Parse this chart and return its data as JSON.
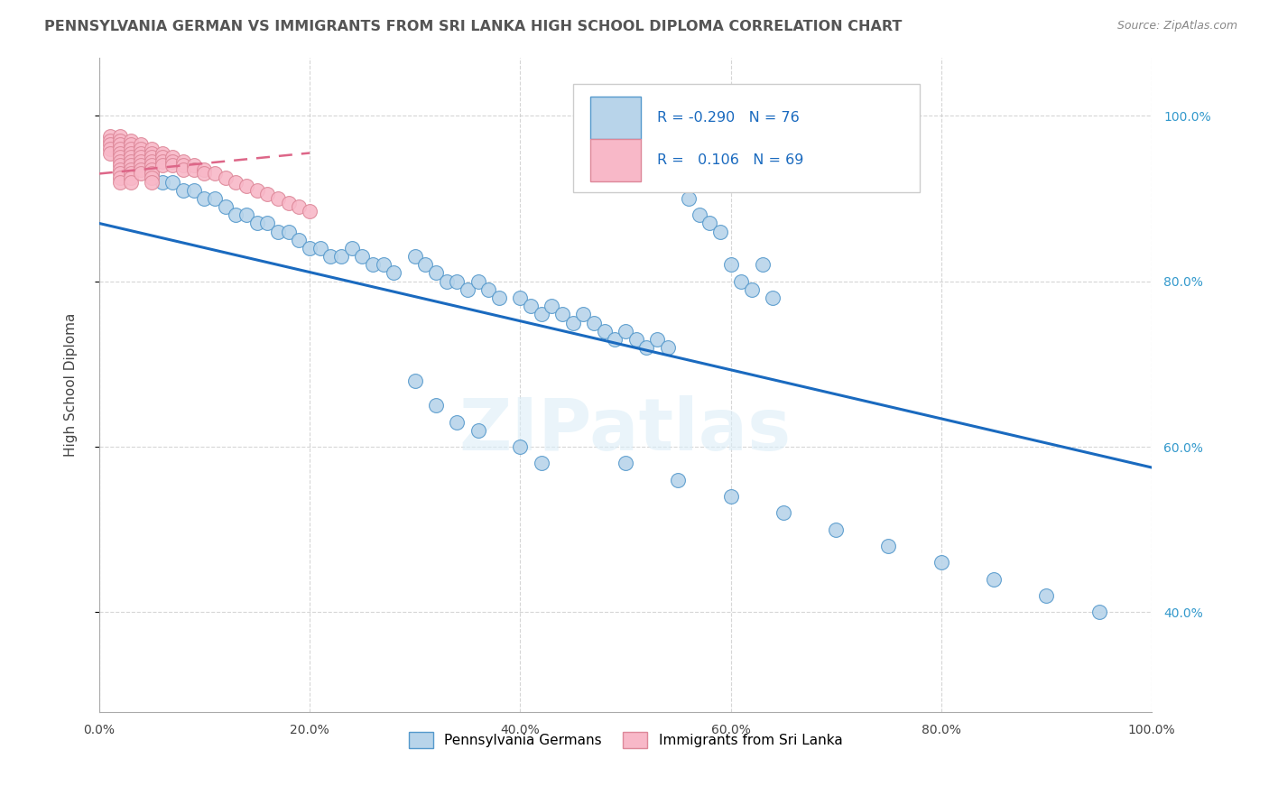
{
  "title": "PENNSYLVANIA GERMAN VS IMMIGRANTS FROM SRI LANKA HIGH SCHOOL DIPLOMA CORRELATION CHART",
  "source": "Source: ZipAtlas.com",
  "ylabel": "High School Diploma",
  "watermark": "ZIPatlas",
  "legend_blue_r": "-0.290",
  "legend_blue_n": "76",
  "legend_pink_r": "0.106",
  "legend_pink_n": "69",
  "legend_label_blue": "Pennsylvania Germans",
  "legend_label_pink": "Immigrants from Sri Lanka",
  "x_ticks": [
    0.0,
    0.2,
    0.4,
    0.6,
    0.8,
    1.0
  ],
  "y_ticks": [
    0.4,
    0.6,
    0.8,
    1.0
  ],
  "xlim": [
    0.0,
    1.0
  ],
  "ylim": [
    0.28,
    1.07
  ],
  "blue_fill": "#b8d4ea",
  "blue_edge": "#5599cc",
  "pink_fill": "#f8b8c8",
  "pink_edge": "#dd8899",
  "trendline_blue": "#1a6abf",
  "trendline_pink": "#dd6688",
  "background": "#ffffff",
  "grid_color": "#cccccc",
  "blue_x": [
    0.03,
    0.04,
    0.05,
    0.06,
    0.07,
    0.08,
    0.09,
    0.1,
    0.11,
    0.12,
    0.13,
    0.14,
    0.15,
    0.16,
    0.17,
    0.18,
    0.19,
    0.2,
    0.21,
    0.22,
    0.23,
    0.24,
    0.25,
    0.26,
    0.27,
    0.28,
    0.3,
    0.31,
    0.32,
    0.33,
    0.34,
    0.35,
    0.36,
    0.37,
    0.38,
    0.4,
    0.41,
    0.42,
    0.43,
    0.44,
    0.45,
    0.46,
    0.47,
    0.48,
    0.49,
    0.5,
    0.51,
    0.52,
    0.53,
    0.54,
    0.55,
    0.56,
    0.57,
    0.58,
    0.59,
    0.6,
    0.61,
    0.62,
    0.63,
    0.64,
    0.3,
    0.32,
    0.34,
    0.36,
    0.4,
    0.42,
    0.5,
    0.55,
    0.6,
    0.65,
    0.7,
    0.75,
    0.8,
    0.85,
    0.9,
    0.95
  ],
  "blue_y": [
    0.95,
    0.94,
    0.93,
    0.92,
    0.92,
    0.91,
    0.91,
    0.9,
    0.9,
    0.89,
    0.88,
    0.88,
    0.87,
    0.87,
    0.86,
    0.86,
    0.85,
    0.84,
    0.84,
    0.83,
    0.83,
    0.84,
    0.83,
    0.82,
    0.82,
    0.81,
    0.83,
    0.82,
    0.81,
    0.8,
    0.8,
    0.79,
    0.8,
    0.79,
    0.78,
    0.78,
    0.77,
    0.76,
    0.77,
    0.76,
    0.75,
    0.76,
    0.75,
    0.74,
    0.73,
    0.74,
    0.73,
    0.72,
    0.73,
    0.72,
    0.92,
    0.9,
    0.88,
    0.87,
    0.86,
    0.82,
    0.8,
    0.79,
    0.82,
    0.78,
    0.68,
    0.65,
    0.63,
    0.62,
    0.6,
    0.58,
    0.58,
    0.56,
    0.54,
    0.52,
    0.5,
    0.48,
    0.46,
    0.44,
    0.42,
    0.4
  ],
  "pink_x": [
    0.01,
    0.01,
    0.01,
    0.01,
    0.01,
    0.02,
    0.02,
    0.02,
    0.02,
    0.02,
    0.02,
    0.02,
    0.02,
    0.02,
    0.02,
    0.02,
    0.02,
    0.03,
    0.03,
    0.03,
    0.03,
    0.03,
    0.03,
    0.03,
    0.03,
    0.03,
    0.03,
    0.03,
    0.04,
    0.04,
    0.04,
    0.04,
    0.04,
    0.04,
    0.04,
    0.04,
    0.05,
    0.05,
    0.05,
    0.05,
    0.05,
    0.05,
    0.05,
    0.05,
    0.05,
    0.06,
    0.06,
    0.06,
    0.06,
    0.07,
    0.07,
    0.07,
    0.08,
    0.08,
    0.08,
    0.09,
    0.09,
    0.1,
    0.1,
    0.11,
    0.12,
    0.13,
    0.14,
    0.15,
    0.16,
    0.17,
    0.18,
    0.19,
    0.2
  ],
  "pink_y": [
    0.975,
    0.97,
    0.965,
    0.96,
    0.955,
    0.975,
    0.97,
    0.965,
    0.96,
    0.955,
    0.95,
    0.945,
    0.94,
    0.935,
    0.93,
    0.925,
    0.92,
    0.97,
    0.965,
    0.96,
    0.955,
    0.95,
    0.945,
    0.94,
    0.935,
    0.93,
    0.925,
    0.92,
    0.965,
    0.96,
    0.955,
    0.95,
    0.945,
    0.94,
    0.935,
    0.93,
    0.96,
    0.955,
    0.95,
    0.945,
    0.94,
    0.935,
    0.93,
    0.925,
    0.92,
    0.955,
    0.95,
    0.945,
    0.94,
    0.95,
    0.945,
    0.94,
    0.945,
    0.94,
    0.935,
    0.94,
    0.935,
    0.935,
    0.93,
    0.93,
    0.925,
    0.92,
    0.915,
    0.91,
    0.905,
    0.9,
    0.895,
    0.89,
    0.885
  ],
  "blue_trend_x0": 0.0,
  "blue_trend_x1": 1.0,
  "blue_trend_y0": 0.87,
  "blue_trend_y1": 0.575,
  "pink_trend_x0": 0.0,
  "pink_trend_x1": 0.2,
  "pink_trend_y0": 0.93,
  "pink_trend_y1": 0.955
}
